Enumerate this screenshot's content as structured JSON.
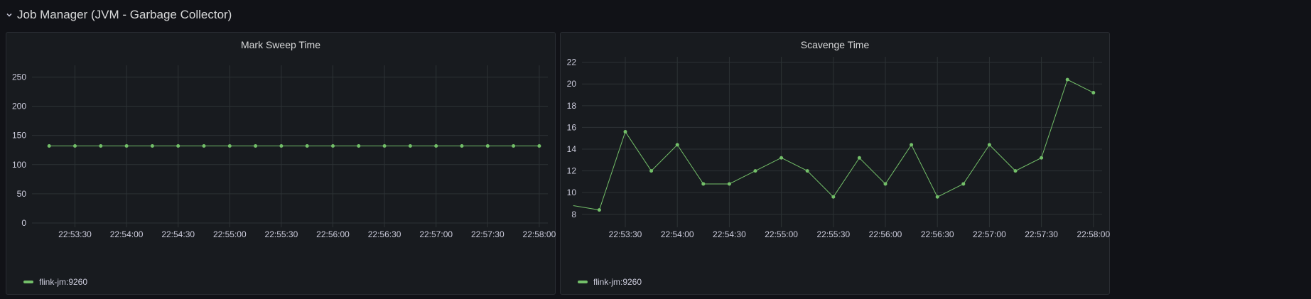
{
  "row": {
    "title": "Job Manager (JVM - Garbage Collector)",
    "chevron_icon": "chevron-down-icon"
  },
  "colors": {
    "series": "#73bf69",
    "grid": "#2c3235",
    "background": "#181b1f"
  },
  "panels": [
    {
      "title": "Mark Sweep Time",
      "legend": "flink-jm:9260"
    },
    {
      "title": "Scavenge Time",
      "legend": "flink-jm:9260"
    }
  ],
  "chart_data": [
    {
      "type": "line",
      "title": "Mark Sweep Time",
      "xlabel": "",
      "ylabel": "",
      "x_ticks": [
        "22:53:30",
        "22:54:00",
        "22:54:30",
        "22:55:00",
        "22:55:30",
        "22:56:00",
        "22:56:30",
        "22:57:00",
        "22:57:30",
        "22:58:00"
      ],
      "y_ticks": [
        0,
        50,
        100,
        150,
        200,
        250
      ],
      "ylim": [
        0,
        270
      ],
      "xlim": [
        "22:53:05",
        "22:58:05"
      ],
      "grid": true,
      "legend_position": "bottom-left",
      "series": [
        {
          "name": "flink-jm:9260",
          "x": [
            "22:53:15",
            "22:53:30",
            "22:53:45",
            "22:54:00",
            "22:54:15",
            "22:54:30",
            "22:54:45",
            "22:55:00",
            "22:55:15",
            "22:55:30",
            "22:55:45",
            "22:56:00",
            "22:56:15",
            "22:56:30",
            "22:56:45",
            "22:57:00",
            "22:57:15",
            "22:57:30",
            "22:57:45",
            "22:58:00"
          ],
          "values": [
            132,
            132,
            132,
            132,
            132,
            132,
            132,
            132,
            132,
            132,
            132,
            132,
            132,
            132,
            132,
            132,
            132,
            132,
            132,
            132
          ]
        }
      ]
    },
    {
      "type": "line",
      "title": "Scavenge Time",
      "xlabel": "",
      "ylabel": "",
      "x_ticks": [
        "22:53:30",
        "22:54:00",
        "22:54:30",
        "22:55:00",
        "22:55:30",
        "22:56:00",
        "22:56:30",
        "22:57:00",
        "22:57:30",
        "22:58:00"
      ],
      "y_ticks": [
        8,
        10,
        12,
        14,
        16,
        18,
        20,
        22
      ],
      "ylim": [
        7.2,
        22.5
      ],
      "xlim": [
        "22:53:05",
        "22:58:05"
      ],
      "grid": true,
      "legend_position": "bottom-left",
      "series": [
        {
          "name": "flink-jm:9260",
          "x": [
            "22:53:00",
            "22:53:15",
            "22:53:30",
            "22:53:45",
            "22:54:00",
            "22:54:15",
            "22:54:30",
            "22:54:45",
            "22:55:00",
            "22:55:15",
            "22:55:30",
            "22:55:45",
            "22:56:00",
            "22:56:15",
            "22:56:30",
            "22:56:45",
            "22:57:00",
            "22:57:15",
            "22:57:30",
            "22:57:45",
            "22:58:00"
          ],
          "values": [
            8.8,
            8.4,
            15.6,
            12.0,
            14.4,
            10.8,
            10.8,
            12.0,
            13.2,
            12.0,
            9.6,
            13.2,
            10.8,
            14.4,
            9.6,
            10.8,
            14.4,
            12.0,
            13.2,
            20.4,
            19.2
          ],
          "markers_from_index": 1
        }
      ]
    }
  ]
}
